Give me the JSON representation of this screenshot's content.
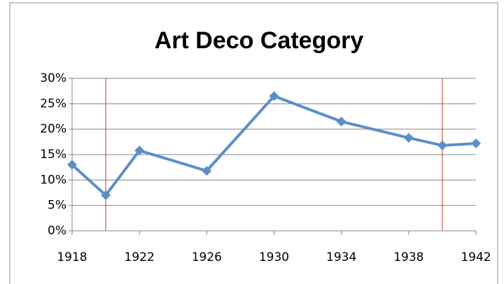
{
  "chart_data": {
    "type": "line",
    "title": "Art Deco Category",
    "x": [
      1918,
      1920,
      1922,
      1926,
      1930,
      1934,
      1938,
      1940,
      1942
    ],
    "series": [
      {
        "name": "Art Deco",
        "color": "#5b8fc7",
        "values": [
          13,
          7,
          15.8,
          11.8,
          26.5,
          21.5,
          18.3,
          16.8,
          17.2
        ]
      }
    ],
    "xlim": [
      1918,
      1942
    ],
    "xticks": [
      1918,
      1922,
      1926,
      1930,
      1934,
      1938,
      1942
    ],
    "ylim": [
      0,
      30
    ],
    "yticks": [
      {
        "value": 0,
        "label": "0%"
      },
      {
        "value": 5,
        "label": "5%"
      },
      {
        "value": 10,
        "label": "10%"
      },
      {
        "value": 15,
        "label": "15%"
      },
      {
        "value": 20,
        "label": "20%"
      },
      {
        "value": 25,
        "label": "25%"
      },
      {
        "value": 30,
        "label": "30%"
      }
    ],
    "grid": true,
    "reference_lines": {
      "color": "#c0392b",
      "x": [
        1920,
        1940
      ]
    }
  }
}
